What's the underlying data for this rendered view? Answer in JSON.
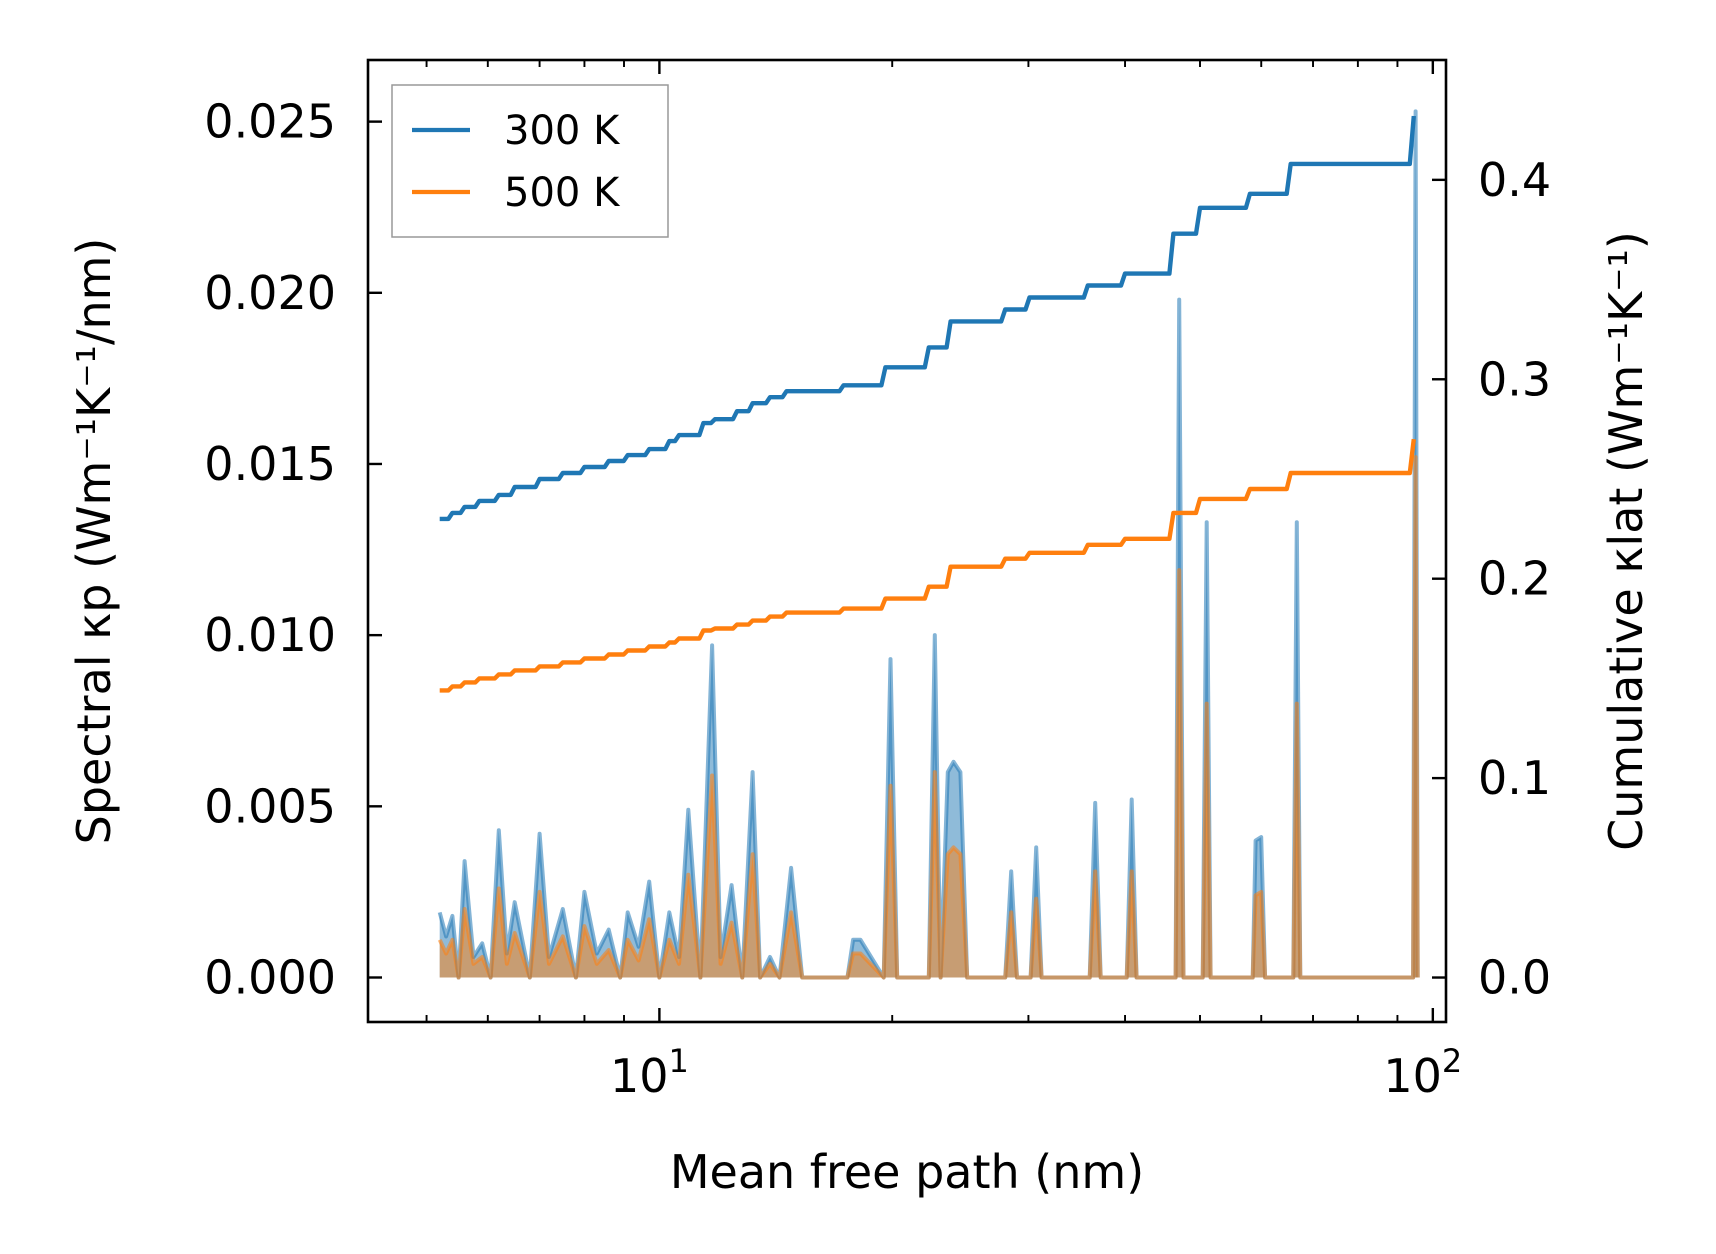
{
  "chart_data": {
    "type": "line",
    "title": "",
    "xlabel": "Mean free path (nm)",
    "ylabel_left": "Spectral κp (Wm⁻¹K⁻¹/nm)",
    "ylabel_right": "Cumulative κlat (Wm⁻¹K⁻¹)",
    "xscale": "log",
    "xlim": [
      4.2,
      104
    ],
    "ylim_left": [
      -0.0013,
      0.0268
    ],
    "ylim_right": [
      -0.0223,
      0.4601
    ],
    "x_ticks": [
      {
        "value": 10,
        "base": "10",
        "exp": "1"
      },
      {
        "value": 100,
        "base": "10",
        "exp": "2"
      }
    ],
    "y_left_ticks": [
      "0.000",
      "0.005",
      "0.010",
      "0.015",
      "0.020",
      "0.025"
    ],
    "y_left_tick_values": [
      0,
      0.005,
      0.01,
      0.015,
      0.02,
      0.025
    ],
    "y_right_ticks": [
      "0.0",
      "0.1",
      "0.2",
      "0.3",
      "0.4"
    ],
    "y_right_tick_values": [
      0,
      0.1,
      0.2,
      0.3,
      0.4
    ],
    "legend": {
      "position": "top-left",
      "entries": [
        {
          "label": "300 K",
          "color": "#1f77b4"
        },
        {
          "label": "500 K",
          "color": "#ff7f0e"
        }
      ]
    },
    "spectral_x": [
      5.2,
      5.3,
      5.4,
      5.5,
      5.6,
      5.75,
      5.9,
      6.05,
      6.2,
      6.35,
      6.5,
      6.8,
      7.0,
      7.2,
      7.5,
      7.8,
      8.0,
      8.3,
      8.6,
      8.9,
      9.1,
      9.4,
      9.7,
      10.0,
      10.3,
      10.6,
      10.9,
      11.3,
      11.7,
      12.0,
      12.4,
      12.8,
      13.2,
      13.5,
      13.9,
      14.3,
      14.8,
      15.3,
      17.5,
      17.8,
      18.2,
      19.5,
      19.9,
      20.3,
      22.3,
      22.7,
      23.1,
      23.6,
      24.0,
      24.5,
      25.0,
      28.0,
      28.5,
      29.0,
      30.2,
      30.7,
      31.2,
      36.0,
      36.6,
      37.2,
      40.2,
      40.8,
      41.4,
      46.5,
      47.0,
      47.6,
      50.4,
      51.0,
      51.6,
      58.5,
      59.0,
      60.0,
      60.7,
      66.0,
      66.7,
      67.4,
      94.3,
      95.0,
      95.6
    ],
    "series": [
      {
        "name": "300 K",
        "color": "#1f77b4",
        "spectral": [
          0.0019,
          0.0012,
          0.0018,
          0,
          0.0034,
          0.0006,
          0.001,
          0,
          0.0043,
          0.0007,
          0.0022,
          0,
          0.0042,
          0.0006,
          0.002,
          0,
          0.0025,
          0.0007,
          0.0014,
          0,
          0.0019,
          0.0009,
          0.0028,
          0,
          0.0019,
          0.0006,
          0.0049,
          0,
          0.0097,
          0.0006,
          0.0027,
          0,
          0.006,
          0,
          0.0006,
          0,
          0.0032,
          0,
          0,
          0.0011,
          0.0011,
          0,
          0.0093,
          0,
          0,
          0.01,
          0,
          0.006,
          0.0063,
          0.006,
          0,
          0,
          0.0031,
          0,
          0,
          0.0038,
          0,
          0,
          0.0051,
          0,
          0,
          0.0052,
          0,
          0,
          0.0198,
          0,
          0,
          0.0133,
          0,
          0,
          0.004,
          0.0041,
          0,
          0,
          0.0133,
          0,
          0,
          0.0253,
          0
        ],
        "cumulative_x": [
          5.2,
          5.4,
          5.6,
          5.85,
          6.2,
          6.5,
          7.0,
          7.5,
          8.0,
          8.6,
          9.1,
          9.7,
          10.3,
          10.6,
          11.4,
          11.8,
          12.6,
          13.2,
          13.9,
          14.6,
          17.3,
          19.6,
          22.3,
          23.8,
          28.0,
          30.1,
          35.8,
          40.0,
          46.2,
          50.0,
          58.0,
          65.5,
          94.5
        ],
        "cumulative": [
          0.23,
          0.233,
          0.236,
          0.239,
          0.242,
          0.246,
          0.25,
          0.253,
          0.256,
          0.259,
          0.262,
          0.265,
          0.269,
          0.272,
          0.278,
          0.28,
          0.284,
          0.288,
          0.291,
          0.294,
          0.297,
          0.306,
          0.316,
          0.329,
          0.335,
          0.341,
          0.347,
          0.353,
          0.373,
          0.386,
          0.393,
          0.408,
          0.432
        ]
      },
      {
        "name": "500 K",
        "color": "#ff7f0e",
        "spectral": [
          0.0011,
          0.0007,
          0.0011,
          0,
          0.002,
          0.0004,
          0.0006,
          0,
          0.0026,
          0.0004,
          0.0013,
          0,
          0.0025,
          0.0004,
          0.0012,
          0,
          0.0015,
          0.0004,
          0.0008,
          0,
          0.0011,
          0.0005,
          0.0017,
          0,
          0.0011,
          0.0004,
          0.003,
          0,
          0.0059,
          0.0004,
          0.0016,
          0,
          0.0036,
          0,
          0.0004,
          0,
          0.0019,
          0,
          0,
          0.0007,
          0.0007,
          0,
          0.0056,
          0,
          0,
          0.006,
          0,
          0.0036,
          0.0038,
          0.0036,
          0,
          0,
          0.0019,
          0,
          0,
          0.0023,
          0,
          0,
          0.0031,
          0,
          0,
          0.0031,
          0,
          0,
          0.0119,
          0,
          0,
          0.008,
          0,
          0,
          0.0024,
          0.0025,
          0,
          0,
          0.008,
          0,
          0,
          0.0152,
          0
        ],
        "cumulative_x": [
          5.2,
          5.4,
          5.6,
          5.85,
          6.2,
          6.5,
          7.0,
          7.5,
          8.0,
          8.6,
          9.1,
          9.7,
          10.3,
          10.6,
          11.4,
          11.8,
          12.6,
          13.2,
          13.9,
          14.6,
          17.3,
          19.6,
          22.3,
          23.8,
          28.0,
          30.1,
          35.8,
          40.0,
          46.2,
          50.0,
          58.0,
          65.5,
          94.5
        ],
        "cumulative": [
          0.144,
          0.146,
          0.148,
          0.15,
          0.152,
          0.154,
          0.156,
          0.158,
          0.16,
          0.162,
          0.164,
          0.166,
          0.168,
          0.17,
          0.174,
          0.175,
          0.177,
          0.179,
          0.181,
          0.183,
          0.185,
          0.19,
          0.196,
          0.206,
          0.21,
          0.213,
          0.217,
          0.22,
          0.233,
          0.24,
          0.245,
          0.253,
          0.27
        ]
      }
    ]
  }
}
